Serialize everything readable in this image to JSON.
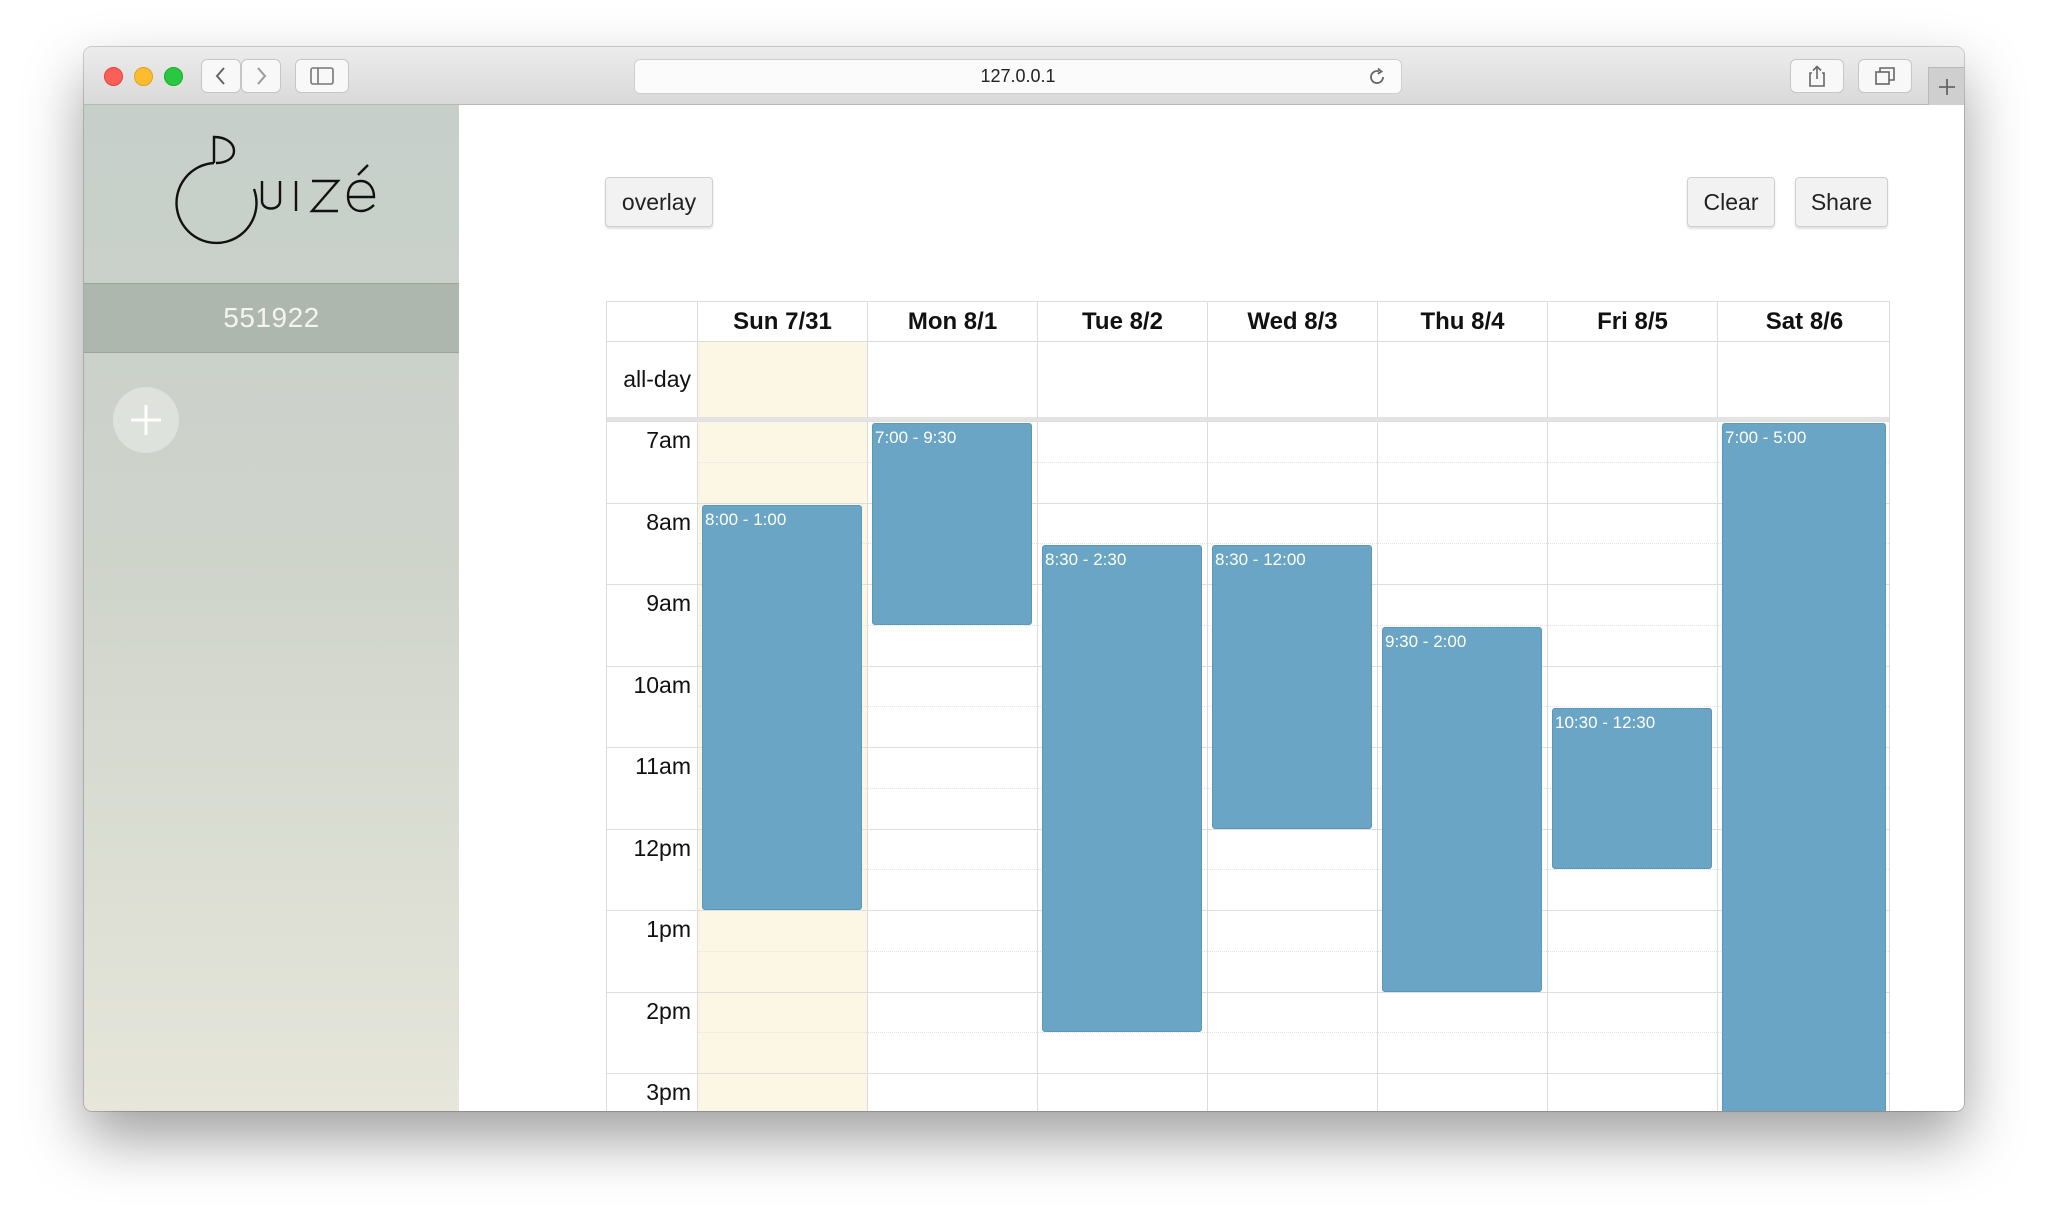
{
  "browser": {
    "url": "127.0.0.1"
  },
  "sidebar": {
    "logo_text": "Ouizé",
    "room_code": "551922"
  },
  "toolbar": {
    "overlay_label": "overlay",
    "clear_label": "Clear",
    "share_label": "Share"
  },
  "calendar": {
    "all_day_label": "all-day",
    "days": [
      "Sun 7/31",
      "Mon 8/1",
      "Tue 8/2",
      "Wed 8/3",
      "Thu 8/4",
      "Fri 8/5",
      "Sat 8/6"
    ],
    "highlighted_day": "Sun 7/31",
    "hours": [
      "7am",
      "8am",
      "9am",
      "10am",
      "11am",
      "12pm",
      "1pm",
      "2pm",
      "3pm"
    ],
    "events": [
      {
        "day": "Sun 7/31",
        "start": 8.0,
        "end": 13.0,
        "label": "8:00 - 1:00"
      },
      {
        "day": "Mon 8/1",
        "start": 7.0,
        "end": 9.5,
        "label": "7:00 - 9:30"
      },
      {
        "day": "Tue 8/2",
        "start": 8.5,
        "end": 14.5,
        "label": "8:30 - 2:30"
      },
      {
        "day": "Wed 8/3",
        "start": 8.5,
        "end": 12.0,
        "label": "8:30 - 12:00"
      },
      {
        "day": "Thu 8/4",
        "start": 9.5,
        "end": 14.0,
        "label": "9:30 - 2:00"
      },
      {
        "day": "Fri 8/5",
        "start": 10.5,
        "end": 12.5,
        "label": "10:30 - 12:30"
      },
      {
        "day": "Sat 8/6",
        "start": 7.0,
        "end": 17.0,
        "label": "7:00 - 5:00"
      }
    ]
  },
  "colors": {
    "event": "#6aa5c5",
    "today": "#fcf7e4"
  }
}
